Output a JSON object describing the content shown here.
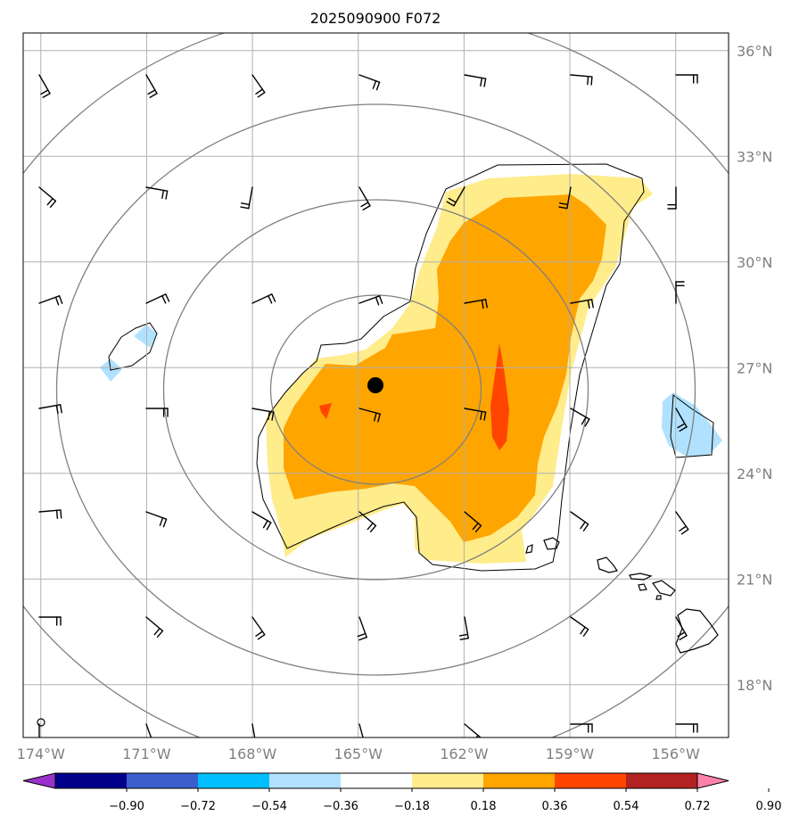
{
  "title": "2025090900 F072",
  "map": {
    "lon_labels": [
      "174°W",
      "171°W",
      "168°W",
      "165°W",
      "162°W",
      "159°W",
      "156°W"
    ],
    "lat_labels": [
      "36°N",
      "33°N",
      "30°N",
      "27°N",
      "24°N",
      "21°N",
      "18°N"
    ],
    "lon_values": [
      -174,
      -171,
      -168,
      -165,
      -162,
      -159,
      -156
    ],
    "lat_values": [
      36,
      33,
      30,
      27,
      24,
      21,
      18
    ],
    "extent": {
      "lon": [
        -174.5,
        -154.5
      ],
      "lat": [
        16.5,
        36.5
      ]
    },
    "storm_center": {
      "lon": -164.5,
      "lat": 26.5
    },
    "grid": true,
    "coastlines": "Hawaiian Islands"
  },
  "colorbar": {
    "tick_labels": [
      "−0.90",
      "−0.72",
      "−0.54",
      "−0.36",
      "−0.18",
      "0.18",
      "0.36",
      "0.54",
      "0.72",
      "0.90"
    ],
    "levels": [
      -0.9,
      -0.72,
      -0.54,
      -0.36,
      -0.18,
      0.18,
      0.36,
      0.54,
      0.72,
      0.9
    ],
    "colors": [
      "#9932cc",
      "#00008b",
      "#3a5fcd",
      "#00bfff",
      "#b0e2ff",
      "#ffffff",
      "#ffec8b",
      "#ffa500",
      "#ff4500",
      "#b22222",
      "#ff82ab"
    ],
    "extend": "both"
  },
  "colors": {
    "grid": "#b0b0b0",
    "range_rings": "#808080",
    "coast": "#000000",
    "contour": "#000000",
    "barb": "#000000"
  }
}
